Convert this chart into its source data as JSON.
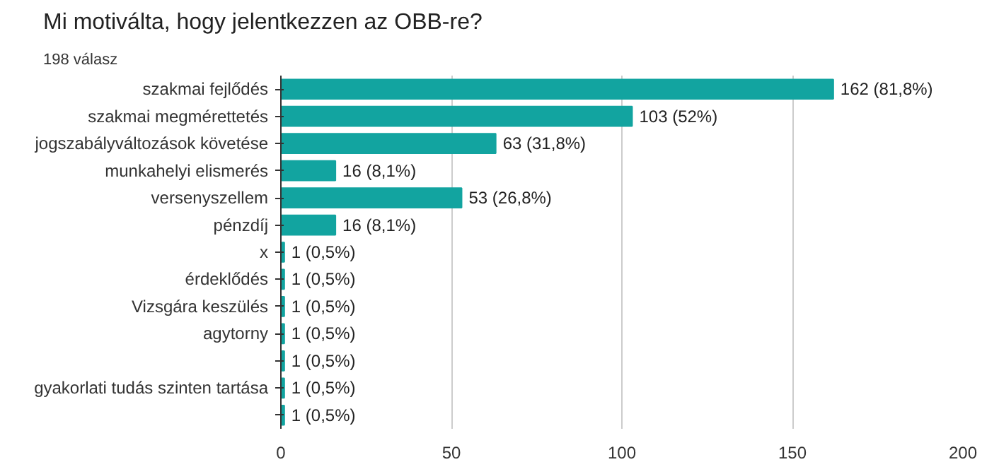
{
  "chart_data": {
    "type": "bar",
    "orientation": "horizontal",
    "title": "Mi motiválta, hogy jelentkezzen az OBB-re?",
    "subtitle": "198 válasz",
    "categories": [
      "szakmai fejlődés",
      "szakmai megmérettetés",
      "jogszabályváltozások követése",
      "munkahelyi elismerés",
      "versenyszellem",
      "pénzdíj",
      "x",
      "érdeklődés",
      "Vizsgára keszülés",
      "agytorny",
      null,
      "gyakorlati tudás szinten tartása",
      null
    ],
    "values": [
      162,
      103,
      63,
      16,
      53,
      16,
      1,
      1,
      1,
      1,
      1,
      1,
      1
    ],
    "value_labels": [
      "162 (81,8%)",
      "103 (52%)",
      "63 (31,8%)",
      "16 (8,1%)",
      "53 (26,8%)",
      "16 (8,1%)",
      "1 (0,5%)",
      "1 (0,5%)",
      "1 (0,5%)",
      "1 (0,5%)",
      "1 (0,5%)",
      "1 (0,5%)",
      "1 (0,5%)"
    ],
    "color": "#12a4a0",
    "xlim": [
      0,
      200
    ],
    "xticks": [
      0,
      50,
      100,
      150,
      200
    ],
    "grid": "x"
  }
}
